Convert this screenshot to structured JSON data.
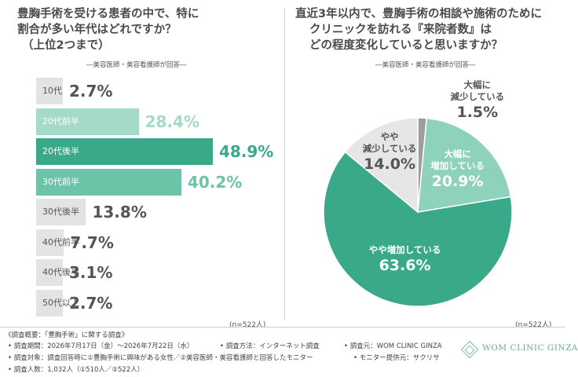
{
  "left": {
    "title_lines": [
      "豊胸手術を受ける患者の中で、特に",
      "割合が多い年代はどれですか？",
      "（上位2つまで）"
    ],
    "subtitle": "―美容医師・美容看護師が回答―",
    "n_note": "(n=522人)"
  },
  "right": {
    "title_lines": [
      "直近3年以内で、豊胸手術の相談や施術のために",
      "クリニックを訪れる『来院者数』は",
      "どの程度変化していると思いますか？"
    ],
    "subtitle": "―美容医師・美容看護師が回答―",
    "n_note": "(n=522人)"
  },
  "chart_data": [
    {
      "type": "bar",
      "orientation": "horizontal",
      "categories": [
        "10代",
        "20代前半",
        "20代後半",
        "30代前半",
        "30代後半",
        "40代前半",
        "40代後半",
        "50代以上"
      ],
      "values": [
        2.7,
        28.4,
        48.9,
        40.2,
        13.8,
        7.7,
        3.1,
        2.7
      ],
      "value_labels": [
        "2.7%",
        "28.4%",
        "48.9%",
        "40.2%",
        "13.8%",
        "7.7%",
        "3.1%",
        "2.7%"
      ],
      "highlight": [
        false,
        true,
        true,
        true,
        false,
        false,
        false,
        false
      ],
      "colors": {
        "top": "#3aa98a",
        "second": "#6cc4a8",
        "third": "#a6dac8",
        "other": "#e3e3e3"
      },
      "value_colors": {
        "top": "#3aa98a",
        "second": "#6cc4a8",
        "third": "#a6dac8",
        "other": "#555555"
      }
    },
    {
      "type": "pie",
      "slices": [
        {
          "label_lines": [
            "大幅に",
            "減少している"
          ],
          "value": 1.5,
          "value_label": "1.5%",
          "color": "#9e9e9e",
          "text_color": "#555555"
        },
        {
          "label_lines": [
            "大幅に",
            "増加している"
          ],
          "value": 20.9,
          "value_label": "20.9%",
          "color": "#8fd2bb",
          "text_color": "#ffffff"
        },
        {
          "label_lines": [
            "やや増加している"
          ],
          "value": 63.6,
          "value_label": "63.6%",
          "color": "#3aa98a",
          "text_color": "#ffffff"
        },
        {
          "label_lines": [
            "やや",
            "減少している"
          ],
          "value": 14.0,
          "value_label": "14.0%",
          "color": "#e6e6e6",
          "text_color": "#555555"
        }
      ]
    }
  ],
  "footer": {
    "line1": "《調査概要：「豊胸手術」に関する調査》",
    "period": "• 調査期間：2026年7月17日（金）～2026年7月22日（水）",
    "method": "• 調査方法：インターネット調査",
    "source": "• 調査元：WOM CLINIC GINZA",
    "target": "• 調査対象：調査回答時に①豊胸手術に興味がある女性／②美容医師・美容看護師と回答したモニター",
    "provider": "• モニター提供元：サクリサ",
    "count": "• 調査人数：1,032人（①510人／②522人）"
  },
  "logo": {
    "text": "WOM CLINIC GINZA",
    "color": "#6aa999"
  }
}
